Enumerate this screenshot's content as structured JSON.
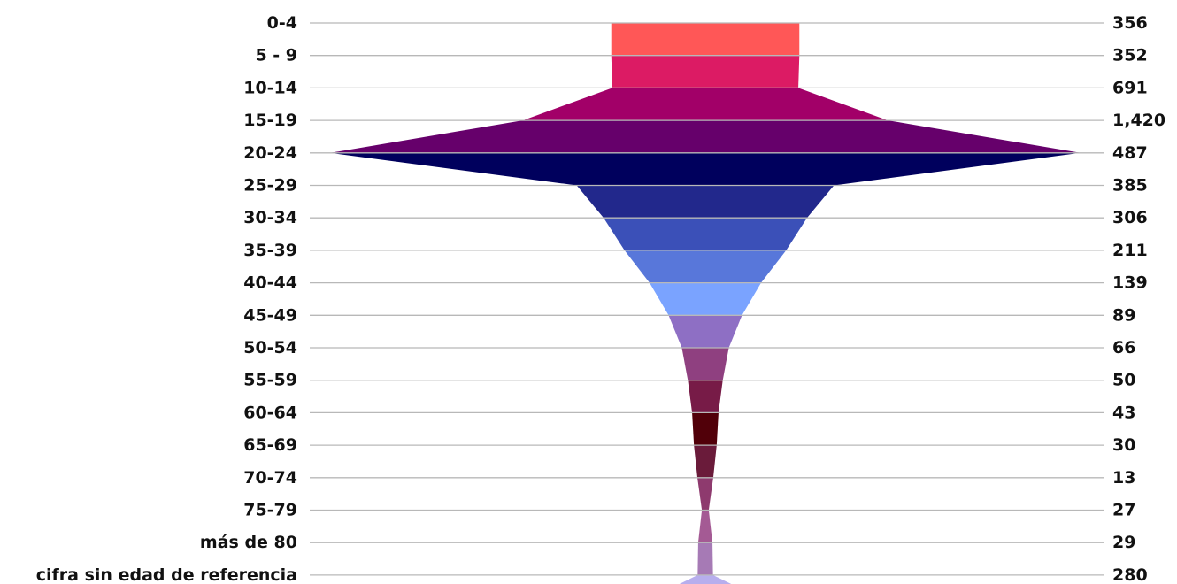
{
  "chart_data": {
    "type": "area",
    "shape": "symmetric funnel",
    "categories": [
      "0-4",
      "5 - 9",
      "10-14",
      "15-19",
      "20-24",
      "25-29",
      "30-34",
      "35-39",
      "40-44",
      "45-49",
      "50-54",
      "55-59",
      "60-64",
      "65-69",
      "70-74",
      "75-79",
      "más de 80",
      "cifra sin edad de referencia"
    ],
    "values": [
      356,
      352,
      691,
      1420,
      487,
      385,
      306,
      211,
      139,
      89,
      66,
      50,
      43,
      30,
      13,
      27,
      29,
      280
    ],
    "value_labels": [
      "356",
      "352",
      "691",
      "1,420",
      "487",
      "385",
      "306",
      "211",
      "139",
      "89",
      "66",
      "50",
      "43",
      "30",
      "13",
      "27",
      "29",
      "280"
    ],
    "colors": [
      "#ff5757",
      "#dc1b64",
      "#a20068",
      "#66006b",
      "#00005d",
      "#22288c",
      "#3b50b8",
      "#5877da",
      "#7aa3ff",
      "#8e6fc4",
      "#8f4080",
      "#771b47",
      "#510009",
      "#6a1b3a",
      "#8e3a6e",
      "#a45a94",
      "#a67ab5",
      "#b7aeed"
    ],
    "grid": true,
    "legend": "none"
  }
}
